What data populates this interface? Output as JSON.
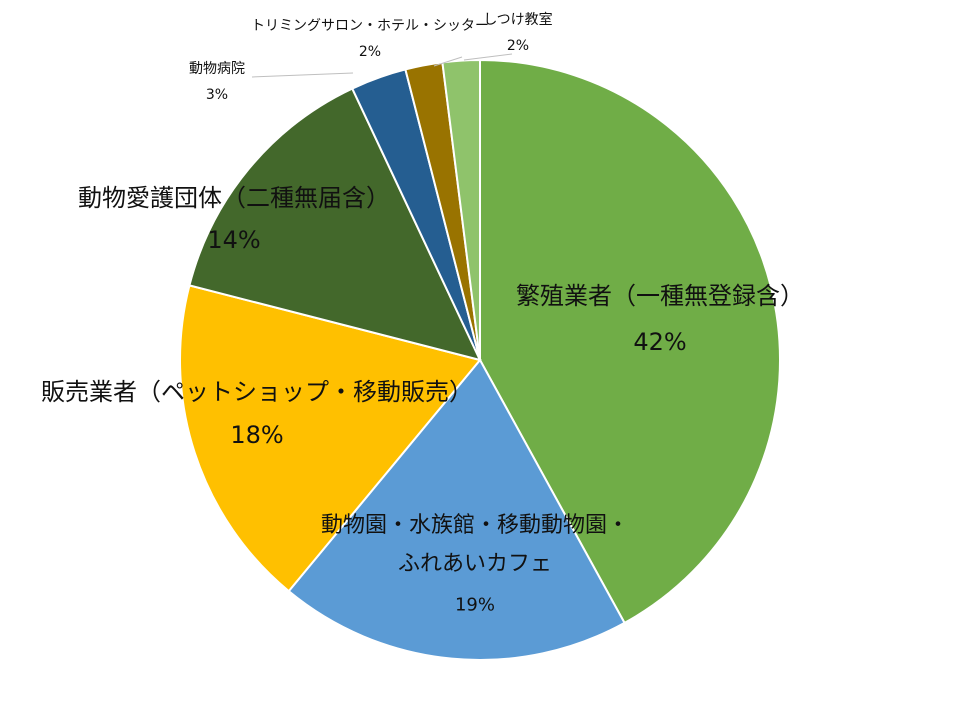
{
  "chart_data": {
    "type": "pie",
    "slices": [
      {
        "label_lines": [
          "繁殖業者（一種無登録含）"
        ],
        "value_text": "42%",
        "value": 42,
        "color": "#70AD47"
      },
      {
        "label_lines": [
          "動物園・水族館・移動動物園・",
          "ふれあいカフェ"
        ],
        "value_text": "19%",
        "value": 19,
        "color": "#5B9BD5"
      },
      {
        "label_lines": [
          "販売業者（ペットショップ・移動販売）"
        ],
        "value_text": "18%",
        "value": 18,
        "color": "#FFC000"
      },
      {
        "label_lines": [
          "動物愛護団体（二種無届含）"
        ],
        "value_text": "14%",
        "value": 14,
        "color": "#43682B"
      },
      {
        "label_lines": [
          "動物病院"
        ],
        "value_text": "3%",
        "value": 3,
        "color": "#255E91"
      },
      {
        "label_lines": [
          "トリミングサロン・ホテル・シッター"
        ],
        "value_text": "2%",
        "value": 2,
        "color": "#997300"
      },
      {
        "label_lines": [
          "しつけ教室"
        ],
        "value_text": "2%",
        "value": 2,
        "color": "#8FC36B"
      }
    ]
  }
}
